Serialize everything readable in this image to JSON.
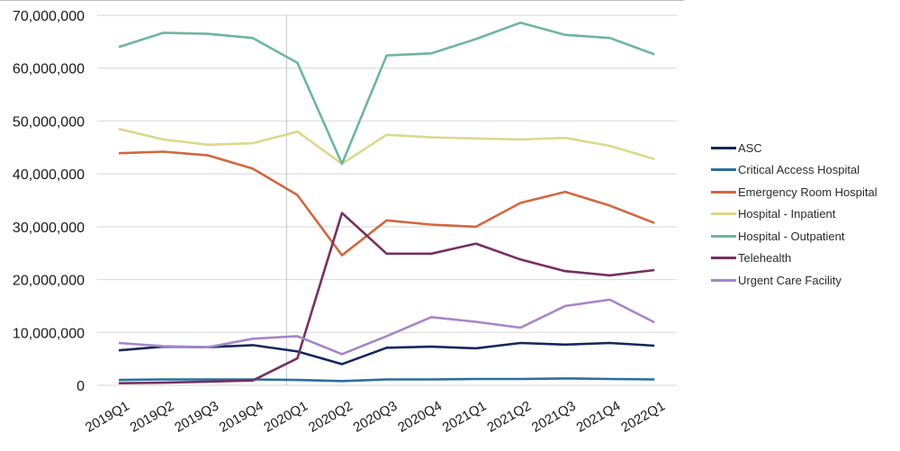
{
  "chart_data": {
    "type": "line",
    "title": "",
    "xlabel": "",
    "ylabel": "",
    "ylim": [
      0,
      70000000
    ],
    "yticks": [
      0,
      10000000,
      20000000,
      30000000,
      40000000,
      50000000,
      60000000,
      70000000
    ],
    "ytick_labels": [
      "0",
      "10,000,000",
      "20,000,000",
      "30,000,000",
      "40,000,000",
      "50,000,000",
      "60,000,000",
      "70,000,000"
    ],
    "grid": true,
    "legend_position": "right",
    "vertical_marker": "2020Q1",
    "categories": [
      "2019Q1",
      "2019Q2",
      "2019Q3",
      "2019Q4",
      "2020Q1",
      "2020Q2",
      "2020Q3",
      "2020Q4",
      "2021Q1",
      "2021Q2",
      "2021Q3",
      "2021Q4",
      "2022Q1"
    ],
    "series": [
      {
        "name": "ASC",
        "color": "#14285a",
        "values": [
          6600000,
          7300000,
          7200000,
          7600000,
          6400000,
          4000000,
          7100000,
          7300000,
          7000000,
          8000000,
          7700000,
          8000000,
          7500000
        ]
      },
      {
        "name": "Critical Access Hospital",
        "color": "#2a6e9e",
        "values": [
          1000000,
          1100000,
          1100000,
          1100000,
          1000000,
          800000,
          1100000,
          1100000,
          1200000,
          1200000,
          1300000,
          1200000,
          1100000
        ]
      },
      {
        "name": "Emergency Room Hospital",
        "color": "#d2673f",
        "values": [
          43900000,
          44200000,
          43500000,
          41000000,
          36000000,
          24600000,
          31200000,
          30400000,
          30000000,
          34500000,
          36600000,
          34000000,
          30700000
        ]
      },
      {
        "name": "Hospital - Inpatient",
        "color": "#dcd88c",
        "values": [
          48500000,
          46500000,
          45500000,
          45800000,
          48000000,
          41900000,
          47400000,
          46900000,
          46700000,
          46500000,
          46800000,
          45300000,
          42800000
        ]
      },
      {
        "name": "Hospital - Outpatient",
        "color": "#6fb5a0",
        "values": [
          64000000,
          66700000,
          66500000,
          65700000,
          61000000,
          41900000,
          62400000,
          62800000,
          65500000,
          68600000,
          66300000,
          65700000,
          62600000
        ]
      },
      {
        "name": "Telehealth",
        "color": "#74305f",
        "values": [
          400000,
          500000,
          700000,
          900000,
          5100000,
          32600000,
          24900000,
          24900000,
          26800000,
          23800000,
          21600000,
          20800000,
          21800000
        ]
      },
      {
        "name": "Urgent Care Facility",
        "color": "#a585c8",
        "values": [
          8000000,
          7400000,
          7200000,
          8800000,
          9300000,
          5900000,
          9300000,
          12900000,
          12000000,
          10900000,
          15000000,
          16200000,
          11900000
        ]
      }
    ]
  }
}
